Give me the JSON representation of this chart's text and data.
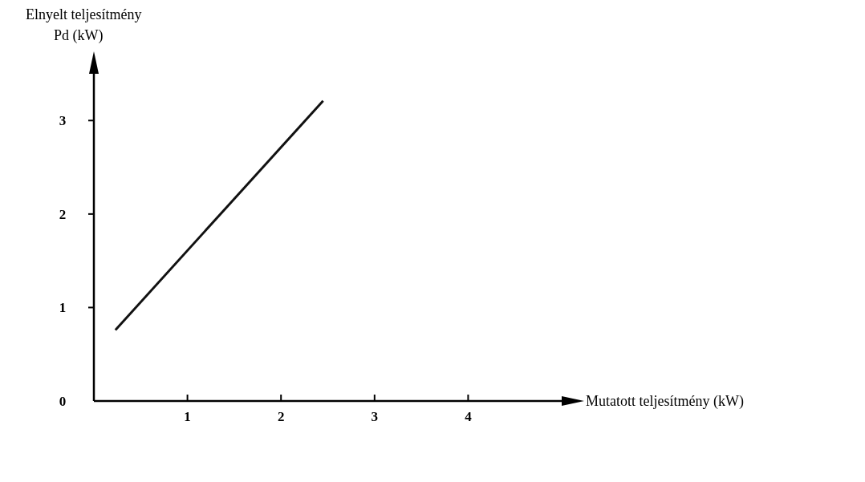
{
  "chart_data": {
    "type": "line",
    "ylabel": "Elnyelt teljesítmény\nPd (kW)",
    "xlabel": "Mutatott teljesítmény (kW)",
    "x": [
      0.23,
      2.45
    ],
    "series": [
      {
        "color": "#111111",
        "values": [
          0.76,
          3.21
        ]
      }
    ],
    "xlim": [
      0,
      5
    ],
    "ylim": [
      0,
      3.5
    ],
    "xticks": [
      1,
      2,
      3,
      4
    ],
    "yticks": [
      0,
      1,
      2,
      3
    ],
    "grid": false,
    "marker": "none",
    "line_style": "solid"
  }
}
